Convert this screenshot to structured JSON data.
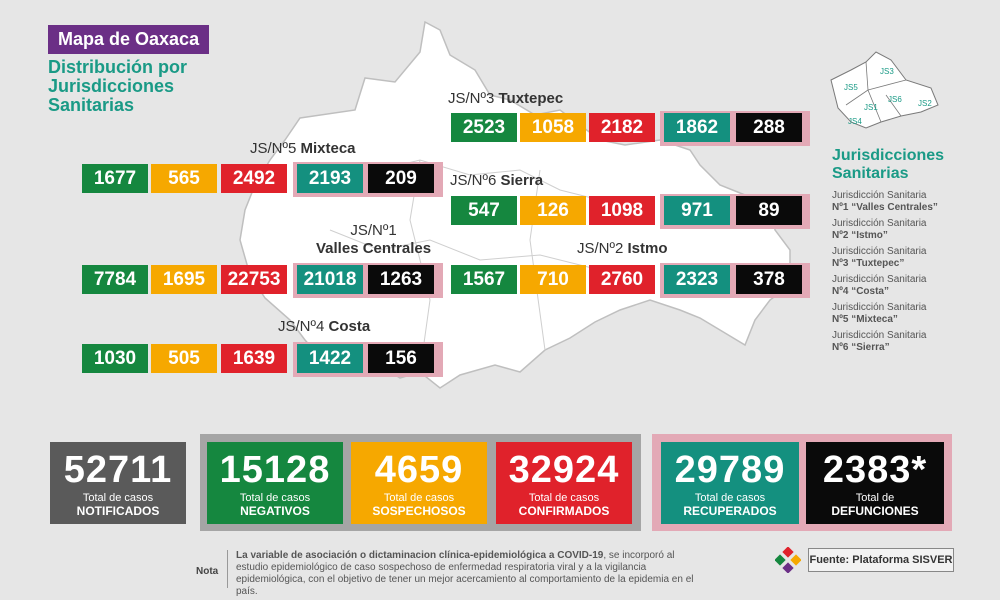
{
  "header": {
    "title": "Mapa de Oaxaca",
    "subtitle_lines": [
      "Distribución por",
      "Jurisdicciones",
      "Sanitarias"
    ]
  },
  "jurisdictions": {
    "js3": {
      "label_prefix": "JS/Nº3",
      "label_name": "Tuxtepec",
      "values": [
        "2523",
        "1058",
        "2182",
        "1862",
        "288"
      ]
    },
    "js5": {
      "label_prefix": "JS/Nº5",
      "label_name": "Mixteca",
      "values": [
        "1677",
        "565",
        "2492",
        "2193",
        "209"
      ]
    },
    "js6": {
      "label_prefix": "JS/Nº6",
      "label_name": "Sierra",
      "values": [
        "547",
        "126",
        "1098",
        "971",
        "89"
      ]
    },
    "js1": {
      "label_prefix": "JS/Nº1",
      "label_name": "Valles Centrales",
      "values": [
        "7784",
        "1695",
        "22753",
        "21018",
        "1263"
      ]
    },
    "js2": {
      "label_prefix": "JS/Nº2",
      "label_name": "Istmo",
      "values": [
        "1567",
        "710",
        "2760",
        "2323",
        "378"
      ]
    },
    "js4": {
      "label_prefix": "JS/Nº4",
      "label_name": "Costa",
      "values": [
        "1030",
        "505",
        "1639",
        "1422",
        "156"
      ]
    }
  },
  "mini_map": {
    "labels": [
      "JS3",
      "JS5",
      "JS1",
      "JS6",
      "JS2",
      "JS4"
    ]
  },
  "legend": {
    "title_lines": [
      "Jurisdicciones",
      "Sanitarias"
    ],
    "items": [
      {
        "line1": "Jurisdicción Sanitaria",
        "line2": "Nº1 “Valles Centrales”"
      },
      {
        "line1": "Jurisdicción Sanitaria",
        "line2": "Nº2 “Istmo”"
      },
      {
        "line1": "Jurisdicción Sanitaria",
        "line2": "Nº3 “Tuxtepec”"
      },
      {
        "line1": "Jurisdicción Sanitaria",
        "line2": "Nº4 “Costa”"
      },
      {
        "line1": "Jurisdicción Sanitaria",
        "line2": "Nº5 “Mixteca”"
      },
      {
        "line1": "Jurisdicción Sanitaria",
        "line2": "Nº6 “Sierra”"
      }
    ]
  },
  "totals": [
    {
      "value": "52711",
      "label1": "Total de casos",
      "label2": "NOTIFICADOS",
      "color": "#5a5a5a"
    },
    {
      "value": "15128",
      "label1": "Total de casos",
      "label2": "NEGATIVOS",
      "color": "#15873f"
    },
    {
      "value": "4659",
      "label1": "Total de casos",
      "label2": "SOSPECHOSOS",
      "color": "#f6a800"
    },
    {
      "value": "32924",
      "label1": "Total de casos",
      "label2": "CONFIRMADOS",
      "color": "#e0222b"
    },
    {
      "value": "29789",
      "label1": "Total de casos",
      "label2": "RECUPERADOS",
      "color": "#14907f"
    },
    {
      "value": "2383*",
      "label1": "Total de",
      "label2": "DEFUNCIONES",
      "color": "#0a0a0a"
    }
  ],
  "note": {
    "label": "Nota",
    "bold_text": "La variable de asociación o dictaminacion clínica-epidemiológica a COVID-19",
    "text": ", se incorporó al estudio epidemiológico de caso sospechoso de enfermedad respiratoria viral y a la vigilancia epidemiológica, con el objetivo de tener un mejor acercamiento al comportamiento de la epidemia en el país."
  },
  "source": "Fuente: Plataforma SISVER",
  "colors": {
    "negative": "#15873f",
    "suspect": "#f6a800",
    "confirmed": "#e0222b",
    "recovered": "#14907f",
    "deaths": "#0a0a0a",
    "accent": "#1a9a86",
    "title_bg": "#6b2f86"
  }
}
